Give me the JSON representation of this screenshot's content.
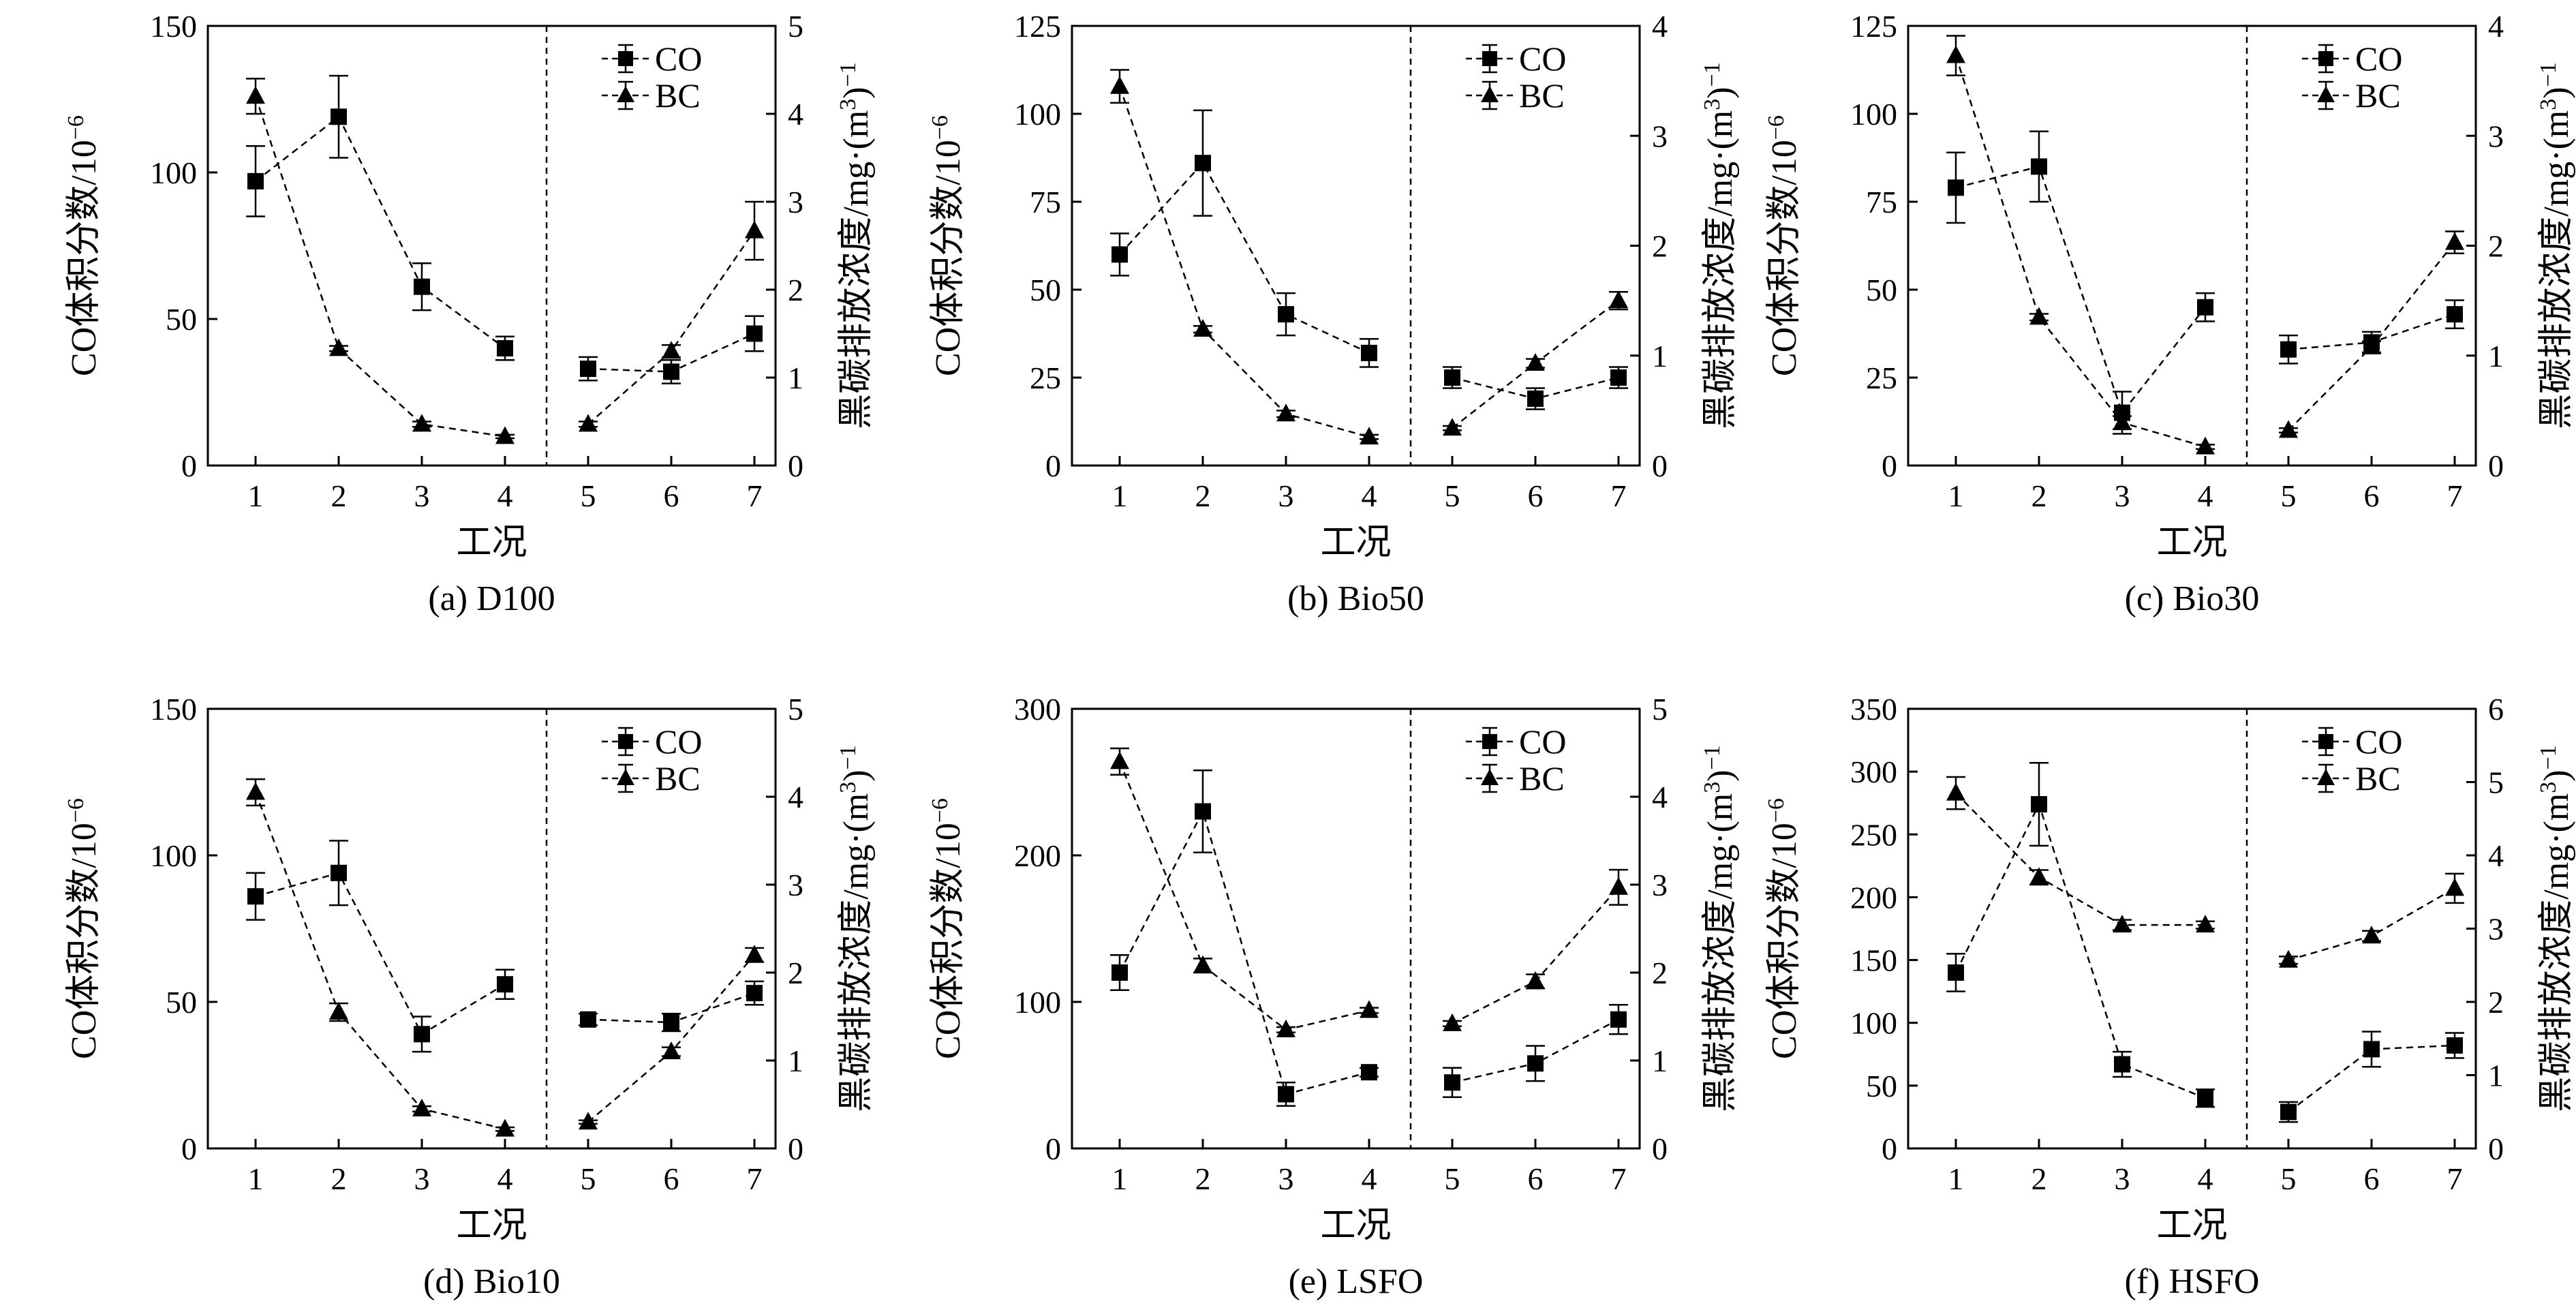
{
  "figure": {
    "shared_x_label": "工况",
    "co_axis_label": "CO体积分数/10",
    "co_axis_exponent": "−6",
    "bc_axis_label": "黑碳排放浓度/mg·(m",
    "bc_axis_sup3": "3",
    "bc_axis_close": ")",
    "bc_axis_exponent": "−1",
    "legend": [
      "CO",
      "BC"
    ],
    "colors": {
      "line": "#000000",
      "background": "#ffffff"
    }
  },
  "chart_data": [
    {
      "type": "line",
      "caption": "(a) D100",
      "x": [
        1,
        2,
        3,
        4,
        5,
        6,
        7
      ],
      "xlabel": "工况",
      "ylabel": "CO体积分数/10−6",
      "y2label": "黑碳排放浓度/mg·(m3)−1",
      "ylim": [
        0,
        150
      ],
      "y_ticks": [
        0,
        50,
        100,
        150
      ],
      "y2lim": [
        0,
        5
      ],
      "y2_ticks": [
        0,
        1,
        2,
        3,
        4,
        5
      ],
      "divider_x": 4.5,
      "series": [
        {
          "name": "CO",
          "axis": "left",
          "marker": "square",
          "values": [
            97,
            119,
            61,
            40,
            33,
            32,
            45
          ],
          "errors": [
            12,
            14,
            8,
            4,
            4,
            4,
            6
          ]
        },
        {
          "name": "BC",
          "axis": "right",
          "marker": "triangle",
          "values": [
            4.2,
            1.33,
            0.47,
            0.33,
            0.47,
            1.3,
            2.67
          ],
          "errors": [
            0.2,
            0.03,
            0.03,
            0.02,
            0.03,
            0.07,
            0.33
          ]
        }
      ]
    },
    {
      "type": "line",
      "caption": "(b) Bio50",
      "x": [
        1,
        2,
        3,
        4,
        5,
        6,
        7
      ],
      "xlabel": "工况",
      "ylabel": "CO体积分数/10−6",
      "y2label": "黑碳排放浓度/mg·(m3)−1",
      "ylim": [
        0,
        125
      ],
      "y_ticks": [
        0,
        25,
        50,
        75,
        100,
        125
      ],
      "y2lim": [
        0,
        4
      ],
      "y2_ticks": [
        0,
        1,
        2,
        3,
        4
      ],
      "divider_x": 4.5,
      "series": [
        {
          "name": "CO",
          "axis": "left",
          "marker": "square",
          "values": [
            60,
            86,
            43,
            32,
            25,
            19,
            25
          ],
          "errors": [
            6,
            15,
            6,
            4,
            3,
            3,
            3
          ]
        },
        {
          "name": "BC",
          "axis": "right",
          "marker": "triangle",
          "values": [
            3.45,
            1.24,
            0.47,
            0.26,
            0.34,
            0.93,
            1.5
          ],
          "errors": [
            0.15,
            0.03,
            0.03,
            0.02,
            0.02,
            0.04,
            0.08
          ]
        }
      ]
    },
    {
      "type": "line",
      "caption": "(c) Bio30",
      "x": [
        1,
        2,
        3,
        4,
        5,
        6,
        7
      ],
      "xlabel": "工况",
      "ylabel": "CO体积分数/10−6",
      "y2label": "黑碳排放浓度/mg·(m3)−1",
      "ylim": [
        0,
        125
      ],
      "y_ticks": [
        0,
        25,
        50,
        75,
        100,
        125
      ],
      "y2lim": [
        0,
        4
      ],
      "y2_ticks": [
        0,
        1,
        2,
        3,
        4
      ],
      "divider_x": 4.5,
      "series": [
        {
          "name": "CO",
          "axis": "left",
          "marker": "square",
          "values": [
            79,
            85,
            15,
            45,
            33,
            35,
            43
          ],
          "errors": [
            10,
            10,
            6,
            4,
            4,
            3,
            4
          ]
        },
        {
          "name": "BC",
          "axis": "right",
          "marker": "triangle",
          "values": [
            3.73,
            1.35,
            0.39,
            0.17,
            0.32,
            1.08,
            2.03
          ],
          "errors": [
            0.18,
            0.03,
            0.06,
            0.02,
            0.02,
            0.05,
            0.1
          ]
        }
      ]
    },
    {
      "type": "line",
      "caption": "(d) Bio10",
      "x": [
        1,
        2,
        3,
        4,
        5,
        6,
        7
      ],
      "xlabel": "工况",
      "ylabel": "CO体积分数/10−6",
      "y2label": "黑碳排放浓度/mg·(m3)−1",
      "ylim": [
        0,
        150
      ],
      "y_ticks": [
        0,
        50,
        100,
        150
      ],
      "y2lim": [
        0,
        5
      ],
      "y2_ticks": [
        0,
        1,
        2,
        3,
        4,
        5
      ],
      "divider_x": 4.5,
      "series": [
        {
          "name": "CO",
          "axis": "left",
          "marker": "square",
          "values": [
            86,
            94,
            39,
            56,
            44,
            43,
            53
          ],
          "errors": [
            8,
            11,
            6,
            5,
            2,
            3,
            4
          ]
        },
        {
          "name": "BC",
          "axis": "right",
          "marker": "triangle",
          "values": [
            4.05,
            1.55,
            0.45,
            0.22,
            0.3,
            1.1,
            2.2
          ],
          "errors": [
            0.15,
            0.1,
            0.03,
            0.02,
            0.02,
            0.05,
            0.08
          ]
        }
      ]
    },
    {
      "type": "line",
      "caption": "(e) LSFO",
      "x": [
        1,
        2,
        3,
        4,
        5,
        6,
        7
      ],
      "xlabel": "工况",
      "ylabel": "CO体积分数/10−6",
      "y2label": "黑碳排放浓度/mg·(m3)−1",
      "ylim": [
        0,
        300
      ],
      "y_ticks": [
        0,
        100,
        200,
        300
      ],
      "y2lim": [
        0,
        5
      ],
      "y2_ticks": [
        0,
        1,
        2,
        3,
        4,
        5
      ],
      "divider_x": 4.5,
      "series": [
        {
          "name": "CO",
          "axis": "left",
          "marker": "square",
          "values": [
            120,
            230,
            37,
            52,
            45,
            58,
            88
          ],
          "errors": [
            12,
            28,
            8,
            3,
            10,
            12,
            10
          ]
        },
        {
          "name": "BC",
          "axis": "right",
          "marker": "triangle",
          "values": [
            4.4,
            2.08,
            1.35,
            1.57,
            1.42,
            1.9,
            2.97
          ],
          "errors": [
            0.15,
            0.08,
            0.03,
            0.03,
            0.03,
            0.08,
            0.2
          ]
        }
      ]
    },
    {
      "type": "line",
      "caption": "(f) HSFO",
      "x": [
        1,
        2,
        3,
        4,
        5,
        6,
        7
      ],
      "xlabel": "工况",
      "ylabel": "CO体积分数/10−6",
      "y2label": "黑碳排放浓度/mg·(m3)−1",
      "ylim": [
        0,
        350
      ],
      "y_ticks": [
        0,
        50,
        100,
        150,
        200,
        250,
        300,
        350
      ],
      "y2lim": [
        0,
        6
      ],
      "y2_ticks": [
        0,
        1,
        2,
        3,
        4,
        5,
        6
      ],
      "divider_x": 4.5,
      "series": [
        {
          "name": "CO",
          "axis": "left",
          "marker": "square",
          "values": [
            140,
            274,
            67,
            40,
            29,
            79,
            82
          ],
          "errors": [
            15,
            33,
            10,
            7,
            8,
            14,
            10
          ]
        },
        {
          "name": "BC",
          "axis": "right",
          "marker": "triangle",
          "values": [
            4.85,
            3.7,
            3.05,
            3.05,
            2.57,
            2.9,
            3.55
          ],
          "errors": [
            0.22,
            0.1,
            0.07,
            0.05,
            0.05,
            0.07,
            0.2
          ]
        }
      ]
    }
  ]
}
